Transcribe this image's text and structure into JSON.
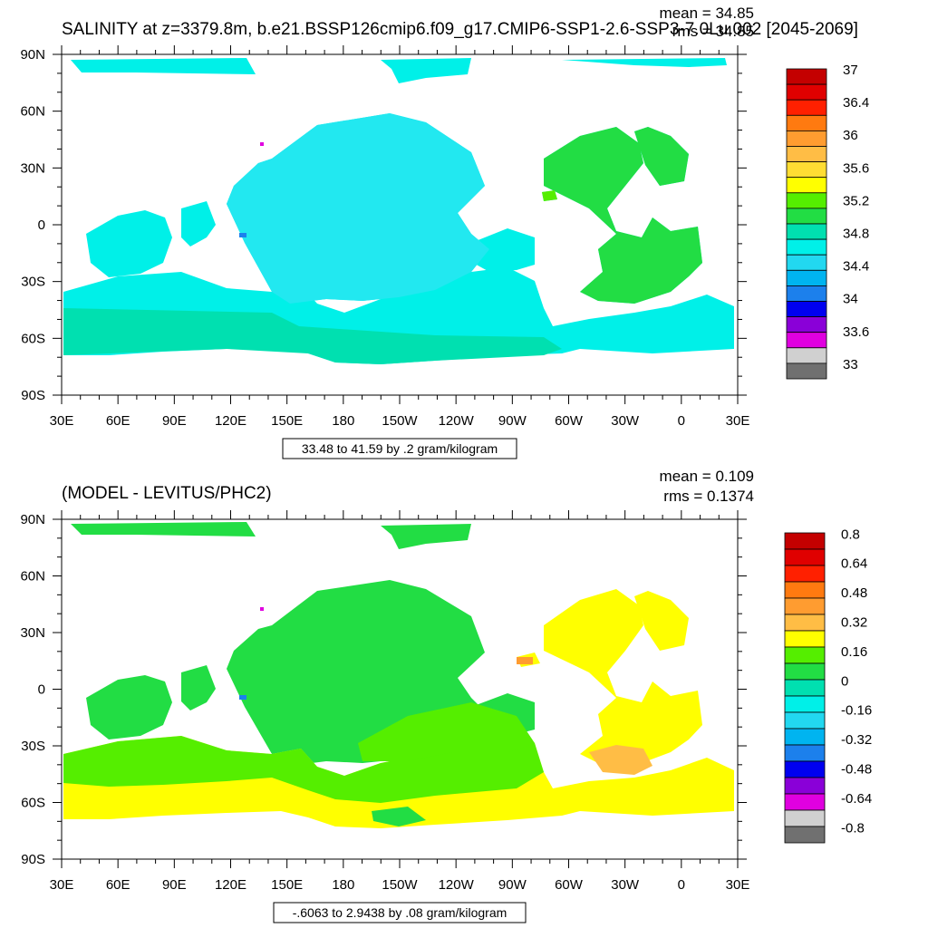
{
  "chart_data": [
    {
      "type": "heatmap",
      "title": "SALINITY at z=3379.8m, b.e21.BSSP126cmip6.f09_g17.CMIP6-SSP1-2.6-SSP3-7.0Lu.002 [2045-2069]",
      "stats": {
        "mean": "mean = 34.85",
        "rms": "rms = 34.85"
      },
      "caption": "33.48 to 41.59 by .2 gram/kilogram",
      "x_ticks": [
        "30E",
        "60E",
        "90E",
        "120E",
        "150E",
        "180",
        "150W",
        "120W",
        "90W",
        "60W",
        "30W",
        "0",
        "30E"
      ],
      "y_ticks": [
        "90N",
        "60N",
        "30N",
        "0",
        "30S",
        "60S",
        "90S"
      ],
      "xlim": [
        30,
        390
      ],
      "ylim": [
        -90,
        90
      ],
      "colorbar": {
        "labels": [
          "37",
          "36.4",
          "36",
          "35.6",
          "35.2",
          "34.8",
          "34.4",
          "34",
          "33.6",
          "33"
        ],
        "colors": [
          "#c40000",
          "#e00000",
          "#ff2000",
          "#ff7a10",
          "#ff9c30",
          "#ffbd45",
          "#ffdd33",
          "#ffff00",
          "#55ee00",
          "#22dd44",
          "#00e0b0",
          "#00f0e8",
          "#22d8f0",
          "#00b4f0",
          "#1c80ec",
          "#0000f0",
          "#8a00d8",
          "#e000e0",
          "#d0d0d0",
          "#707070"
        ]
      }
    },
    {
      "type": "heatmap",
      "title": "(MODEL - LEVITUS/PHC2)",
      "stats": {
        "mean": "mean = 0.109",
        "rms": "rms = 0.1374"
      },
      "caption": "-.6063 to 2.9438 by .08 gram/kilogram",
      "x_ticks": [
        "30E",
        "60E",
        "90E",
        "120E",
        "150E",
        "180",
        "150W",
        "120W",
        "90W",
        "60W",
        "30W",
        "0",
        "30E"
      ],
      "y_ticks": [
        "90N",
        "60N",
        "30N",
        "0",
        "30S",
        "60S",
        "90S"
      ],
      "xlim": [
        30,
        390
      ],
      "ylim": [
        -90,
        90
      ],
      "colorbar": {
        "labels": [
          "0.8",
          "0.64",
          "0.48",
          "0.32",
          "0.16",
          "0",
          "-0.16",
          "-0.32",
          "-0.48",
          "-0.64",
          "-0.8"
        ],
        "colors": [
          "#c40000",
          "#e00000",
          "#ff2000",
          "#ff7a10",
          "#ff9c30",
          "#ffbd45",
          "#ffff00",
          "#55ee00",
          "#22dd44",
          "#00e0b0",
          "#00f0e8",
          "#22d8f0",
          "#00b4f0",
          "#1c80ec",
          "#0000f0",
          "#8a00d8",
          "#e000e0",
          "#d0d0d0",
          "#707070"
        ]
      }
    }
  ]
}
